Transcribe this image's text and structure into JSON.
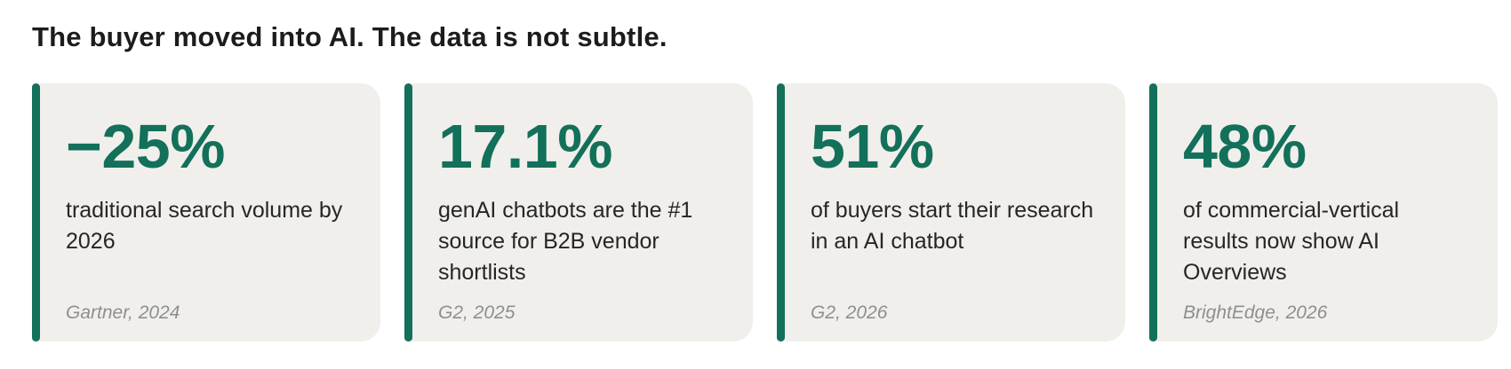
{
  "title": "The buyer moved into AI. The data is not subtle.",
  "colors": {
    "accent": "#13705a",
    "card_background": "#f0efeb",
    "source_text": "#8f8f8f"
  },
  "cards": [
    {
      "stat": "−25%",
      "description": "traditional search volume by 2026",
      "source": "Gartner, 2024"
    },
    {
      "stat": "17.1%",
      "description": "genAI chatbots are the #1 source for B2B vendor shortlists",
      "source": "G2, 2025"
    },
    {
      "stat": "51%",
      "description": "of buyers start their research in an AI chatbot",
      "source": "G2, 2026"
    },
    {
      "stat": "48%",
      "description": "of commercial-vertical results now show AI Overviews",
      "source": "BrightEdge, 2026"
    }
  ]
}
